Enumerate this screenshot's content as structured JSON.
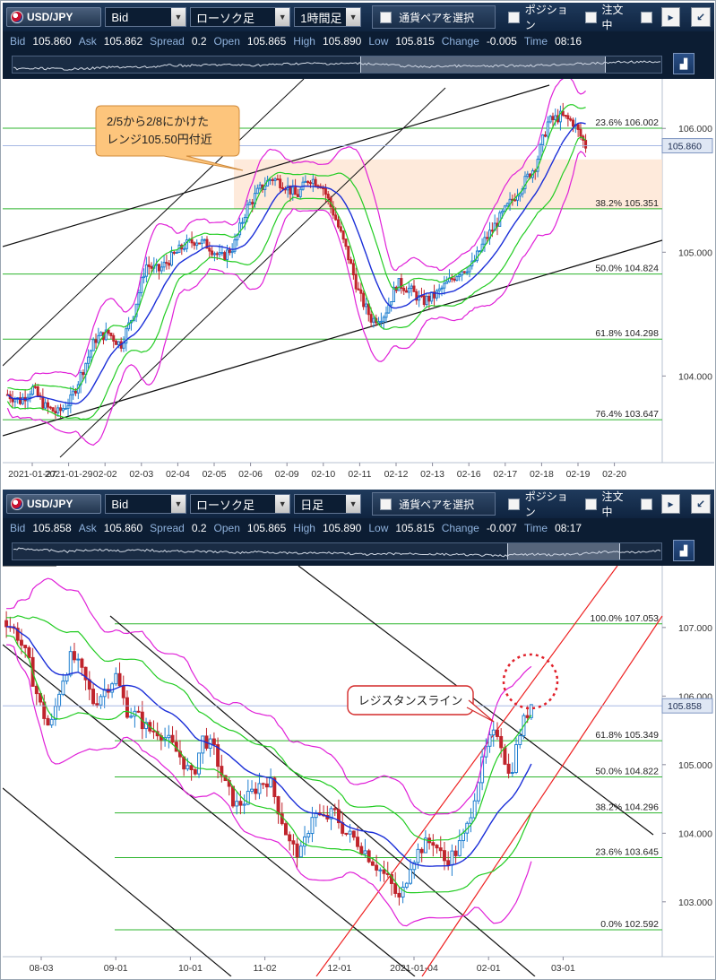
{
  "panels": [
    {
      "toolbar": {
        "pair": "USD/JPY",
        "price_type": "Bid",
        "chart_type": "ローソク足",
        "timeframe": "1時間足",
        "pair_select": "通貨ペアを選択",
        "position_label": "ポジション",
        "order_label": "注文中",
        "scroll_right": "▸",
        "restore_icon": "restore-window-icon"
      },
      "info": {
        "bid_label": "Bid",
        "bid": "105.860",
        "ask_label": "Ask",
        "ask": "105.862",
        "spread_label": "Spread",
        "spread": "0.2",
        "open_label": "Open",
        "open": "105.865",
        "high_label": "High",
        "high": "105.890",
        "low_label": "Low",
        "low": "105.815",
        "change_label": "Change",
        "change": "-0.005",
        "time_label": "Time",
        "time": "08:16"
      }
    },
    {
      "toolbar": {
        "pair": "USD/JPY",
        "price_type": "Bid",
        "chart_type": "ローソク足",
        "timeframe": "日足",
        "pair_select": "通貨ペアを選択",
        "position_label": "ポジション",
        "order_label": "注文中",
        "scroll_right": "▸",
        "restore_icon": "restore-window-icon"
      },
      "info": {
        "bid_label": "Bid",
        "bid": "105.858",
        "ask_label": "Ask",
        "ask": "105.860",
        "spread_label": "Spread",
        "spread": "0.2",
        "open_label": "Open",
        "open": "105.865",
        "high_label": "High",
        "high": "105.890",
        "low_label": "Low",
        "low": "105.815",
        "change_label": "Change",
        "change": "-0.007",
        "time_label": "Time",
        "time": "08:17"
      }
    }
  ],
  "chart_data": [
    {
      "type": "candlestick",
      "timeframe": "1時間足",
      "x_labels": [
        "2021-01-27",
        "2021-01-29",
        "02-02",
        "02-03",
        "02-04",
        "02-05",
        "02-06",
        "02-09",
        "02-10",
        "02-11",
        "02-12",
        "02-13",
        "02-16",
        "02-17",
        "02-18",
        "02-19",
        "02-20"
      ],
      "y_ticks": [
        "106.000",
        "105.000",
        "104.000"
      ],
      "ylim": [
        103.3,
        106.4
      ],
      "current_price": "105.860",
      "fibonacci": [
        {
          "label": "23.6%",
          "value": "106.002"
        },
        {
          "label": "38.2%",
          "value": "105.351"
        },
        {
          "label": "50.0%",
          "value": "104.824"
        },
        {
          "label": "61.8%",
          "value": "104.298"
        },
        {
          "label": "76.4%",
          "value": "103.647"
        }
      ],
      "annotation": "2/5から2/8にかけた\nレンジ105.50円付近",
      "highlight_zone": [
        105.35,
        105.75
      ],
      "price_path": [
        103.85,
        103.8,
        103.9,
        103.75,
        103.7,
        103.8,
        104.05,
        104.3,
        104.35,
        104.25,
        104.5,
        104.9,
        104.85,
        104.95,
        105.05,
        105.1,
        105.05,
        104.95,
        105.05,
        105.35,
        105.5,
        105.6,
        105.55,
        105.45,
        105.6,
        105.55,
        105.3,
        105.0,
        104.65,
        104.45,
        104.5,
        104.75,
        104.7,
        104.6,
        104.65,
        104.75,
        104.85,
        104.9,
        105.1,
        105.25,
        105.4,
        105.55,
        105.7,
        106.05,
        106.1,
        106.05,
        105.86
      ]
    },
    {
      "type": "candlestick",
      "timeframe": "日足",
      "x_labels": [
        "08-03",
        "09-01",
        "10-01",
        "11-02",
        "12-01",
        "2021-01-04",
        "02-01",
        "03-01"
      ],
      "y_ticks": [
        "107.000",
        "106.000",
        "105.000",
        "104.000",
        "103.000"
      ],
      "ylim": [
        102.2,
        107.9
      ],
      "current_price": "105.858",
      "fibonacci": [
        {
          "label": "100.0%",
          "value": "107.053"
        },
        {
          "label": "61.8%",
          "value": "105.349"
        },
        {
          "label": "50.0%",
          "value": "104.822"
        },
        {
          "label": "38.2%",
          "value": "104.296"
        },
        {
          "label": "23.6%",
          "value": "103.645"
        },
        {
          "label": "0.0%",
          "value": "102.592"
        }
      ],
      "annotation": "レジスタンスライン",
      "price_path": [
        107.1,
        106.9,
        106.5,
        105.9,
        105.5,
        106.2,
        106.6,
        106.3,
        105.9,
        106.1,
        106.3,
        105.8,
        105.7,
        105.5,
        105.5,
        105.3,
        105.1,
        104.8,
        105.4,
        105.2,
        104.7,
        104.4,
        104.5,
        104.7,
        104.8,
        104.3,
        103.8,
        103.7,
        104.3,
        104.2,
        104.3,
        104.0,
        103.9,
        103.7,
        103.5,
        103.3,
        103.0,
        103.6,
        103.8,
        103.9,
        103.6,
        103.7,
        104.0,
        104.7,
        105.3,
        105.5,
        104.8,
        105.5,
        105.9
      ]
    }
  ]
}
